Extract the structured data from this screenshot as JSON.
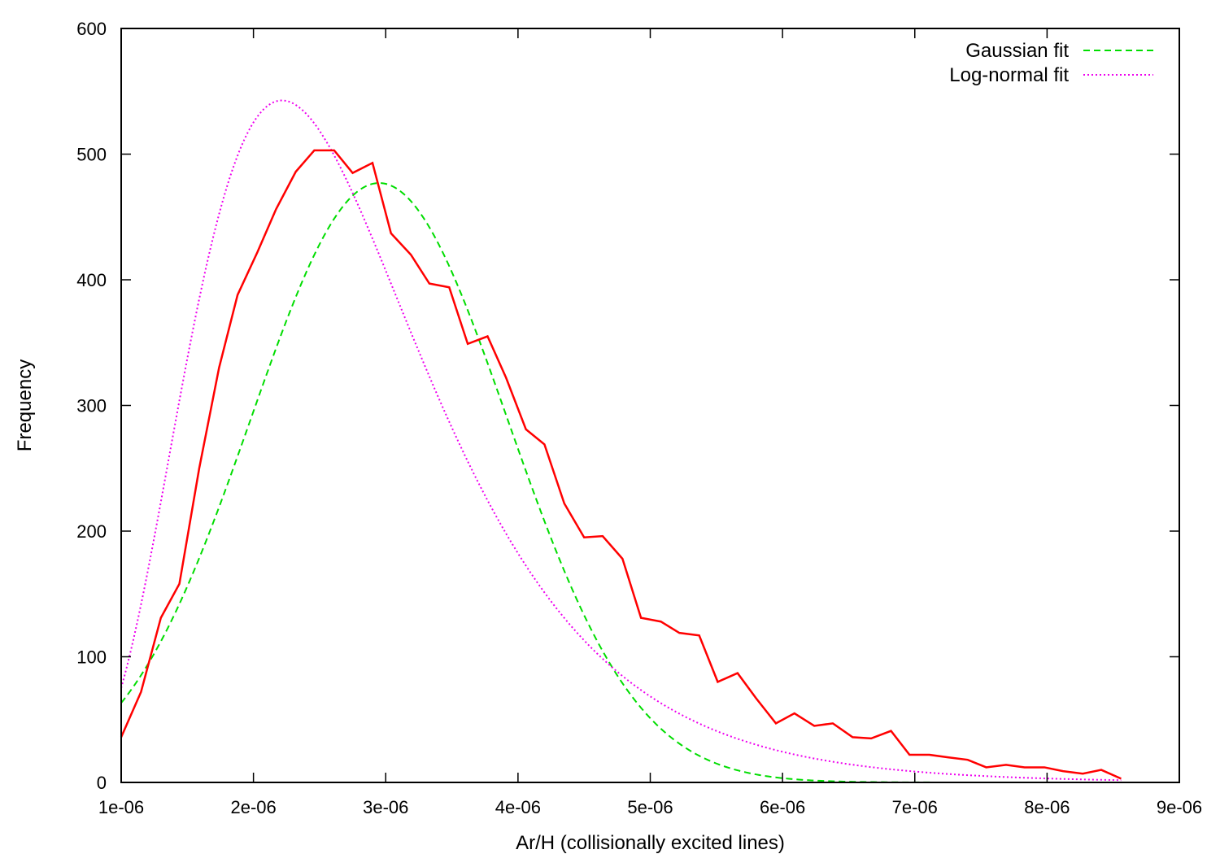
{
  "chart_data": {
    "type": "line",
    "title": "",
    "xlabel": "Ar/H (collisionally excited lines)",
    "ylabel": "Frequency",
    "xlim": [
      1e-06,
      9e-06
    ],
    "ylim": [
      0,
      600
    ],
    "x_ticks": [
      1e-06,
      2e-06,
      3e-06,
      4e-06,
      5e-06,
      6e-06,
      7e-06,
      8e-06,
      9e-06
    ],
    "x_tick_labels": [
      "1e-06",
      "2e-06",
      "3e-06",
      "4e-06",
      "5e-06",
      "6e-06",
      "7e-06",
      "8e-06",
      "9e-06"
    ],
    "y_ticks": [
      0,
      100,
      200,
      300,
      400,
      500,
      600
    ],
    "y_tick_labels": [
      "0",
      "100",
      "200",
      "300",
      "400",
      "500",
      "600"
    ],
    "grid": false,
    "legend_position": "top-right",
    "colors": {
      "histogram": "#ff0000",
      "gaussian": "#00dd00",
      "lognormal": "#ee00ee",
      "axis": "#000000"
    },
    "series": [
      {
        "style": "solid",
        "color": "#ff0000",
        "x": [
          1e-06,
          1.15e-06,
          1.3e-06,
          1.44e-06,
          1.59e-06,
          1.74e-06,
          1.88e-06,
          2.03e-06,
          2.17e-06,
          2.32e-06,
          2.46e-06,
          2.61e-06,
          2.75e-06,
          2.9e-06,
          3.04e-06,
          3.19e-06,
          3.33e-06,
          3.48e-06,
          3.62e-06,
          3.77e-06,
          3.91e-06,
          4.06e-06,
          4.2e-06,
          4.35e-06,
          4.5e-06,
          4.64e-06,
          4.79e-06,
          4.93e-06,
          5.08e-06,
          5.22e-06,
          5.37e-06,
          5.51e-06,
          5.66e-06,
          5.8e-06,
          5.95e-06,
          6.09e-06,
          6.24e-06,
          6.38e-06,
          6.53e-06,
          6.67e-06,
          6.82e-06,
          6.96e-06,
          7.11e-06,
          7.25e-06,
          7.4e-06,
          7.54e-06,
          7.69e-06,
          7.83e-06,
          7.98e-06,
          8.12e-06,
          8.27e-06,
          8.41e-06,
          8.56e-06
        ],
        "values": [
          36,
          72,
          131,
          158,
          250,
          330,
          388,
          422,
          456,
          486,
          503,
          503,
          485,
          493,
          437,
          420,
          397,
          394,
          349,
          355,
          322,
          281,
          269,
          222,
          195,
          196,
          178,
          131,
          128,
          119,
          117,
          80,
          87,
          67,
          47,
          55,
          45,
          47,
          36,
          35,
          41,
          22,
          22,
          20,
          18,
          12,
          14,
          12,
          12,
          9,
          7,
          10,
          3
        ]
      },
      {
        "name": "Gaussian fit",
        "style": "dashed",
        "color": "#00dd00",
        "function": "gaussian",
        "amplitude": 477,
        "mean": 2.95e-06,
        "sigma": 9.7e-07
      },
      {
        "name": "Log-normal fit",
        "style": "dotted",
        "color": "#ee00ee",
        "function": "lognormal",
        "amplitude": 501,
        "mode": 2.6e-06,
        "sigma_ln": 0.4
      }
    ]
  }
}
